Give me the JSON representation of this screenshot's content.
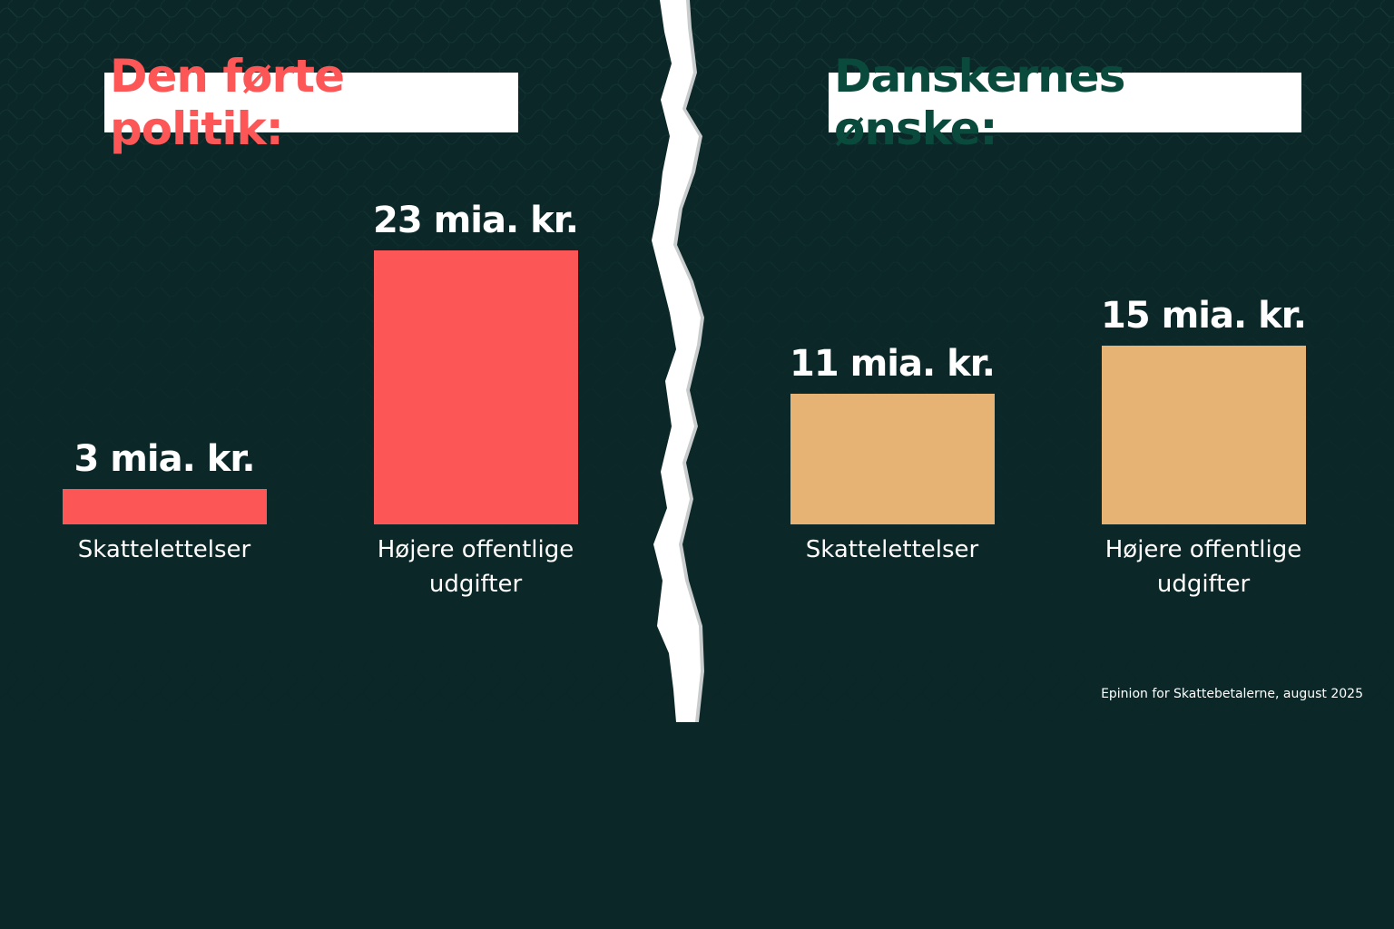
{
  "colors": {
    "background": "#0b2727",
    "left_bars": "#fd5656",
    "right_bars": "#e6b374",
    "left_title_text": "#fd5656",
    "right_title_text": "#0a4a3d",
    "tear": "#ffffff"
  },
  "left_panel": {
    "title": "Den førte politik:"
  },
  "right_panel": {
    "title": "Danskernes ønske:"
  },
  "source": "Epinion for Skattebetalerne, august 2025",
  "chart_data": [
    {
      "type": "bar",
      "title": "Den førte politik:",
      "categories": [
        "Skattelettelser",
        "Højere offentlige udgifter"
      ],
      "category_lines": [
        [
          "Skattelettelser"
        ],
        [
          "Højere offentlige",
          "udgifter"
        ]
      ],
      "values": [
        3,
        23
      ],
      "value_labels": [
        "3 mia. kr.",
        "23 mia. kr."
      ],
      "unit": "mia. kr.",
      "color": "#fd5656"
    },
    {
      "type": "bar",
      "title": "Danskernes ønske:",
      "categories": [
        "Skattelettelser",
        "Højere offentlige udgifter"
      ],
      "category_lines": [
        [
          "Skattelettelser"
        ],
        [
          "Højere offentlige",
          "udgifter"
        ]
      ],
      "values": [
        11,
        15
      ],
      "value_labels": [
        "11 mia. kr.",
        "15 mia. kr."
      ],
      "unit": "mia. kr.",
      "color": "#e6b374"
    }
  ]
}
